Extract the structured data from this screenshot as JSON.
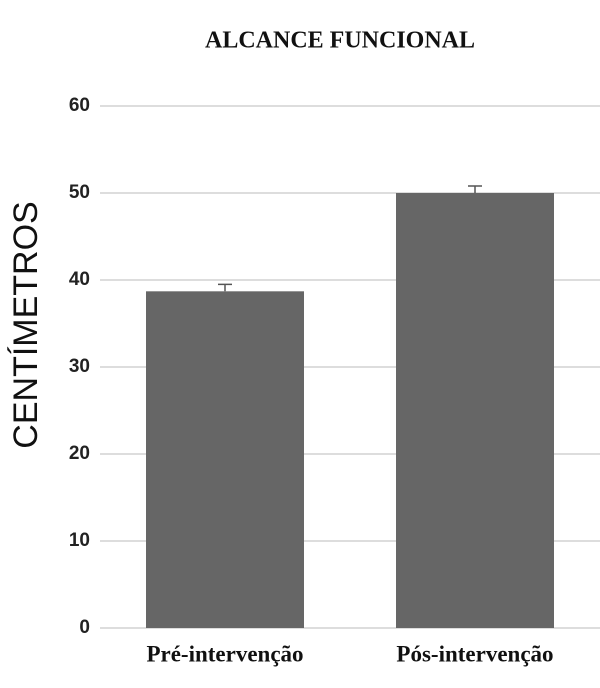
{
  "chart_data": {
    "type": "bar",
    "title": "ALCANCE FUNCIONAL",
    "y_label": "CENTÍMETROS",
    "categories": [
      "Pré-intervenção",
      "Pós-intervenção"
    ],
    "values": [
      38.7,
      50.0
    ],
    "errors": [
      0.8,
      0.8
    ],
    "color": "#666666",
    "ylim": [
      0,
      60
    ],
    "yticks": [
      0,
      10,
      20,
      30,
      40,
      50,
      60
    ],
    "grid": true
  }
}
